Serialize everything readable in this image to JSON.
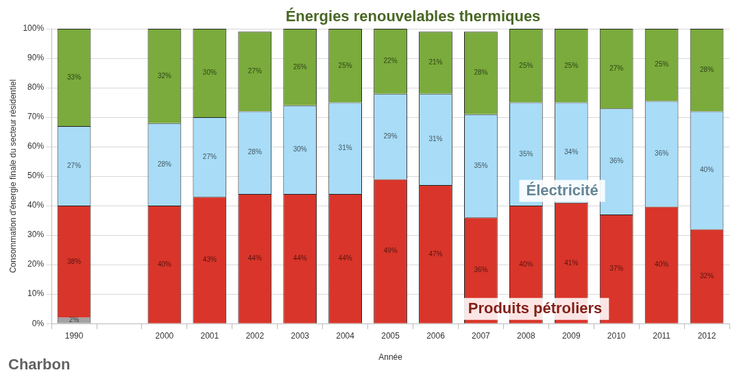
{
  "chart_data": {
    "type": "bar",
    "stacked": true,
    "xlabel": "Année",
    "ylabel": "Consommation d'énergie finale du secteur résidentiel",
    "categories": [
      "1990",
      null,
      "2000",
      "2001",
      "2002",
      "2003",
      "2004",
      "2005",
      "2006",
      "2007",
      "2008",
      "2009",
      "2010",
      "2011",
      "2012"
    ],
    "series": [
      {
        "name": "Charbon",
        "color": "#a3a3a3",
        "values": [
          2,
          null,
          0,
          0,
          0,
          0,
          0,
          0,
          0,
          0,
          0,
          0,
          0,
          0,
          0
        ],
        "value_labels": [
          "2%",
          null,
          null,
          null,
          null,
          null,
          null,
          null,
          null,
          null,
          null,
          null,
          null,
          null,
          null
        ]
      },
      {
        "name": "Produits pétroliers",
        "color": "#d9352a",
        "values": [
          38,
          null,
          40,
          43,
          44,
          44,
          44,
          49,
          47,
          36,
          40,
          41,
          37,
          39.7,
          32
        ],
        "value_labels": [
          "38%",
          null,
          "40%",
          "43%",
          "44%",
          "44%",
          "44%",
          "49%",
          "47%",
          "36%",
          "40%",
          "41%",
          "37%",
          "40%",
          "32%"
        ]
      },
      {
        "name": "Électricité",
        "color": "#a8dcf7",
        "values": [
          27,
          null,
          28,
          27,
          28,
          30,
          31,
          29,
          31,
          35,
          35,
          34,
          36,
          35.8,
          40
        ],
        "value_labels": [
          "27%",
          null,
          "28%",
          "27%",
          "28%",
          "30%",
          "31%",
          "29%",
          "31%",
          "35%",
          "35%",
          "34%",
          "36%",
          "36%",
          "40%"
        ]
      },
      {
        "name": "Énergies renouvelables thermiques",
        "color": "#7aab3c",
        "values": [
          33,
          null,
          32,
          30,
          27,
          26,
          25,
          22,
          21,
          28,
          25,
          25,
          27,
          24.5,
          28
        ],
        "value_labels": [
          "33%",
          null,
          "32%",
          "30%",
          "27%",
          "26%",
          "25%",
          "22%",
          "21%",
          "28%",
          "25%",
          "25%",
          "27%",
          "25%",
          "28%"
        ]
      }
    ],
    "ylim": [
      0,
      100
    ],
    "yticks": [
      {
        "value": 0,
        "label": "0%"
      },
      {
        "value": 10,
        "label": "10%"
      },
      {
        "value": 20,
        "label": "20%"
      },
      {
        "value": 30,
        "label": "30%"
      },
      {
        "value": 40,
        "label": "40%"
      },
      {
        "value": 50,
        "label": "50%"
      },
      {
        "value": 60,
        "label": "60%"
      },
      {
        "value": 70,
        "label": "70%"
      },
      {
        "value": 80,
        "label": "80%"
      },
      {
        "value": 90,
        "label": "90%"
      },
      {
        "value": 100,
        "label": "100%"
      }
    ],
    "grid": "y",
    "legend": false
  }
}
